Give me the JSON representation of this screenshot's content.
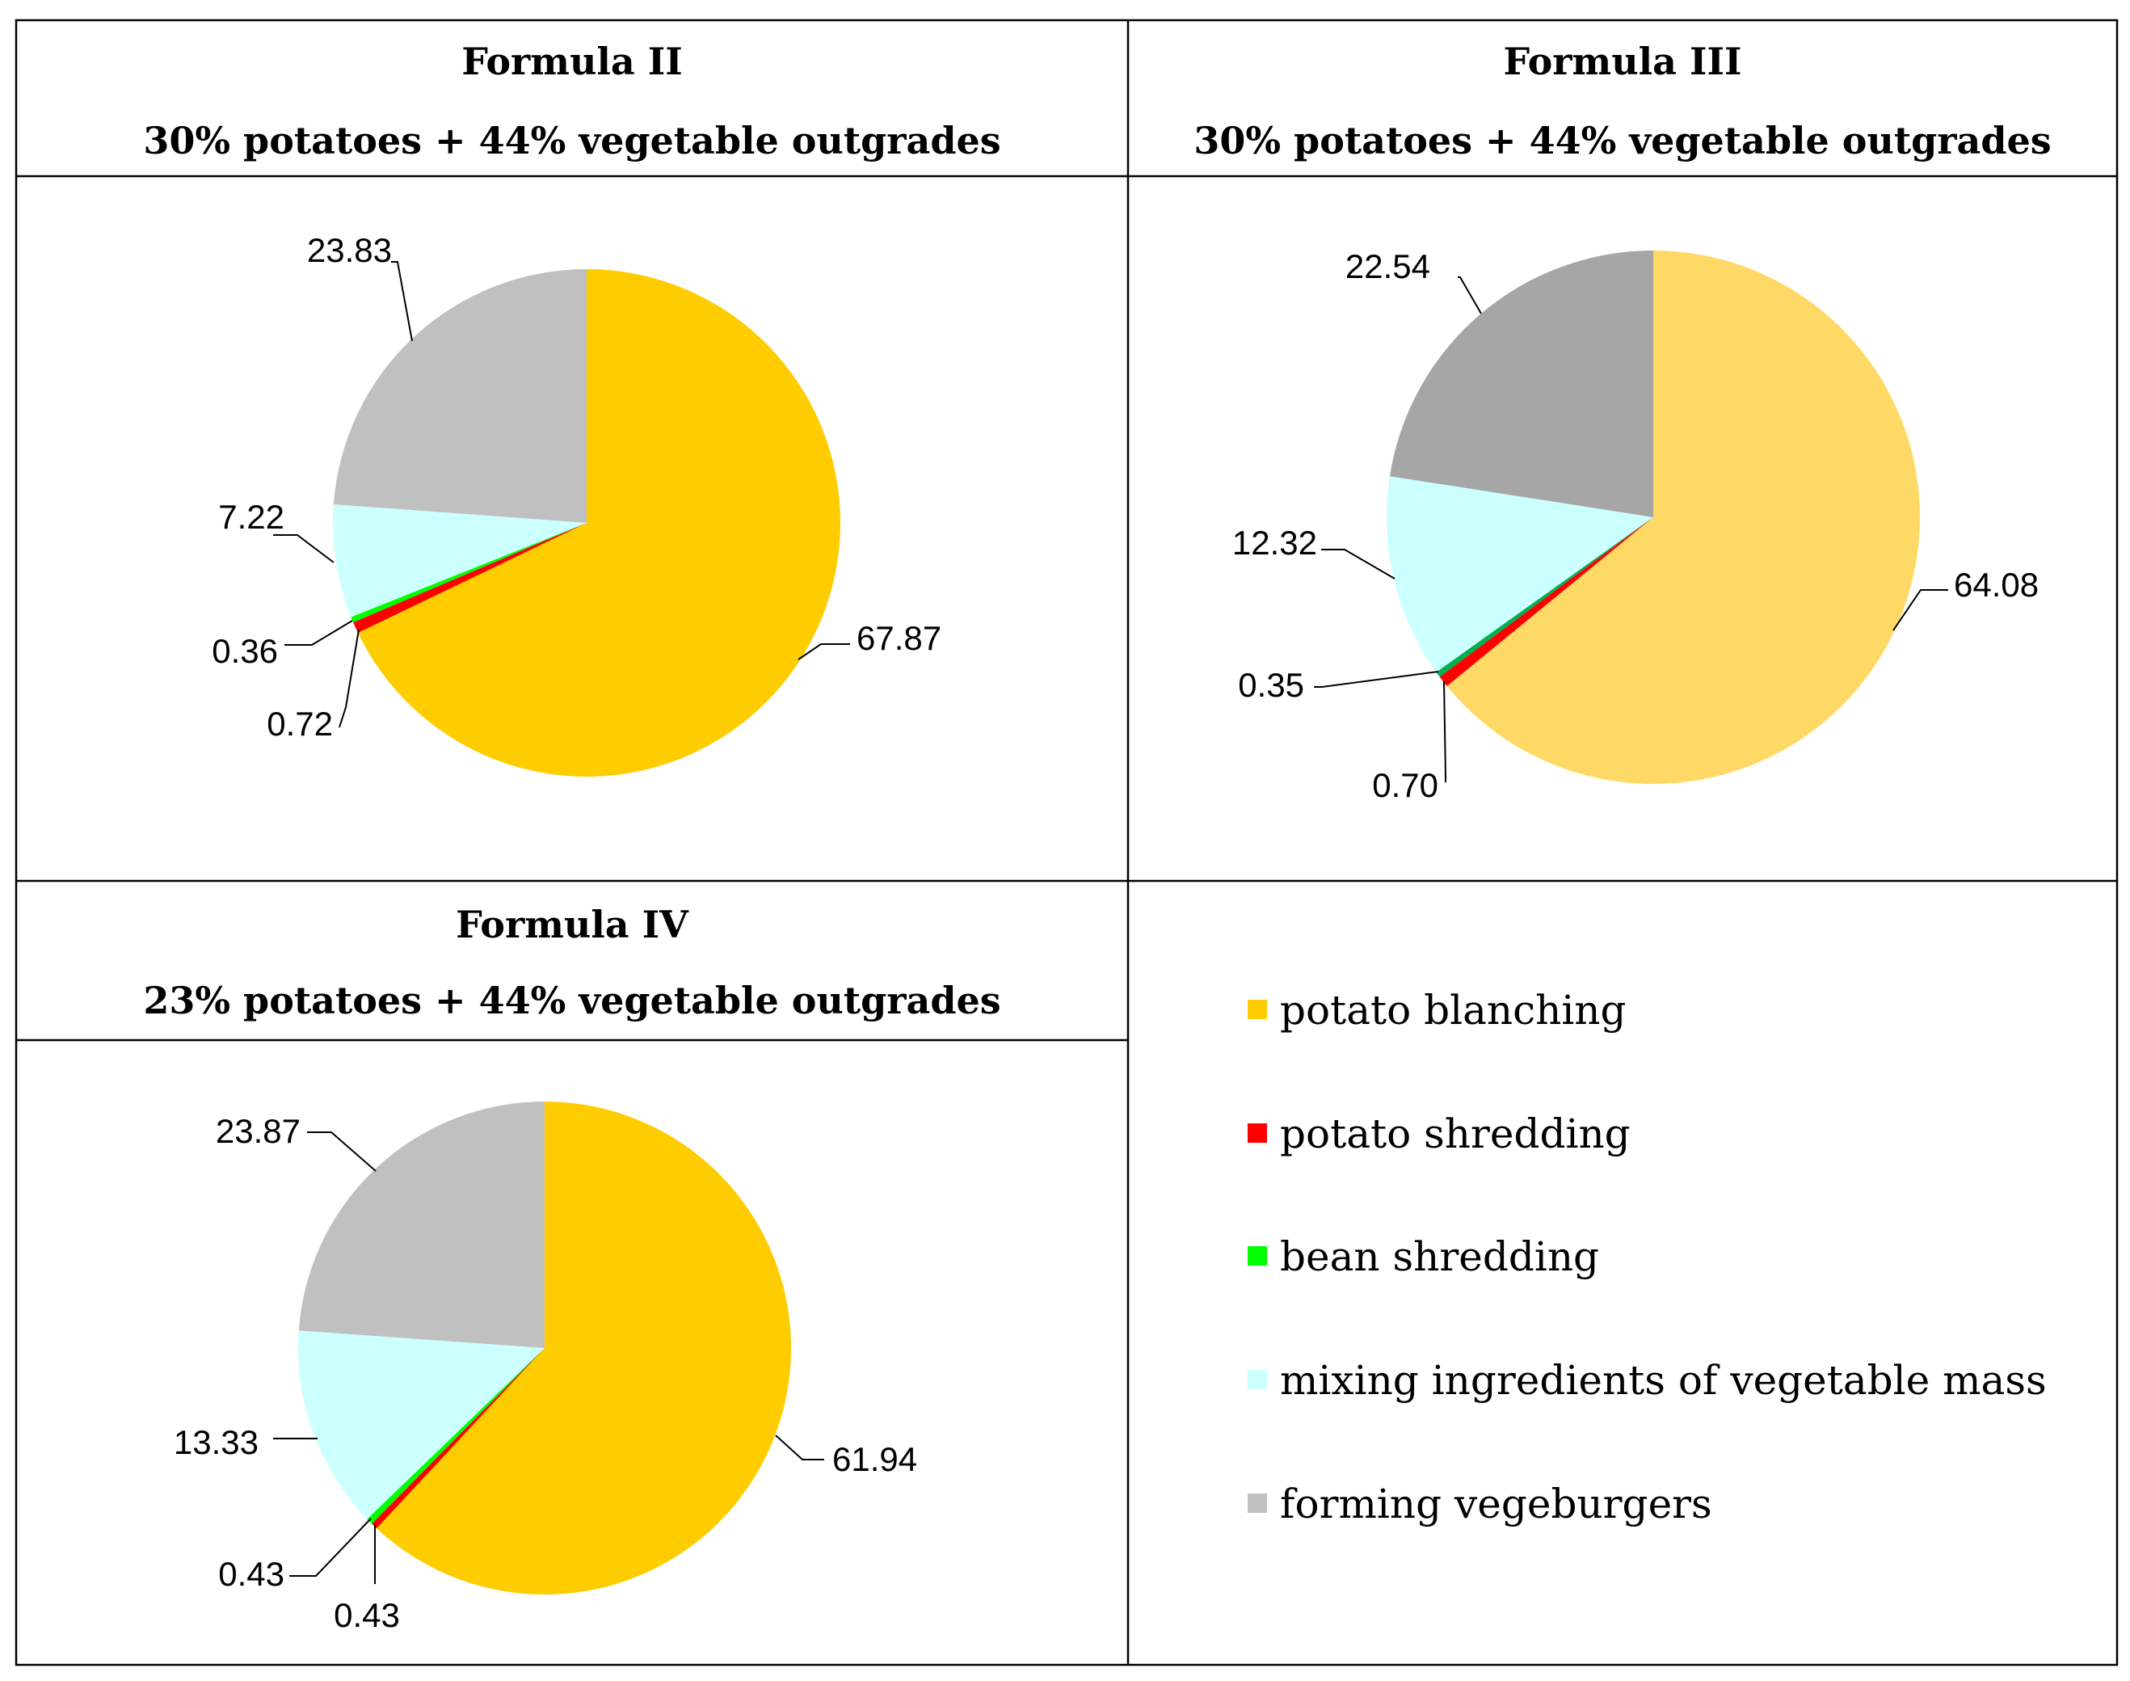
{
  "colors": {
    "potato_blanching": "#FFCC00",
    "potato_blanching_light": "#FFD966",
    "potato_shredding": "#FF0000",
    "bean_shredding": "#00FF00",
    "bean_shredding_alt": "#00B050",
    "mixing": "#CCFFFF",
    "forming": "#C0C0C0",
    "forming_dark": "#A6A6A6"
  },
  "legend": {
    "items": [
      {
        "label": "potato blanching",
        "color": "#FFCC00"
      },
      {
        "label": "potato shredding",
        "color": "#FF0000"
      },
      {
        "label": "bean shredding",
        "color": "#00FF00"
      },
      {
        "label": "mixing ingredients of vegetable mass",
        "color": "#CCFFFF"
      },
      {
        "label": "forming vegeburgers",
        "color": "#C0C0C0"
      }
    ]
  },
  "chart_data": [
    {
      "type": "pie",
      "title": "Formula II",
      "subtitle": "30% potatoes + 44% vegetable outgrades",
      "slices": [
        {
          "name": "potato blanching",
          "value": 67.87,
          "label": "67.87",
          "color": "#FFCC00"
        },
        {
          "name": "potato shredding",
          "value": 0.72,
          "label": "0.72",
          "color": "#FF0000"
        },
        {
          "name": "bean shredding",
          "value": 0.36,
          "label": "0.36",
          "color": "#00FF00"
        },
        {
          "name": "mixing ingredients of vegetable mass",
          "value": 7.22,
          "label": "7.22",
          "color": "#CCFFFF"
        },
        {
          "name": "forming vegeburgers",
          "value": 23.83,
          "label": "23.83",
          "color": "#C0C0C0"
        }
      ]
    },
    {
      "type": "pie",
      "title": "Formula III",
      "subtitle": "30% potatoes + 44% vegetable outgrades",
      "slices": [
        {
          "name": "potato blanching",
          "value": 64.08,
          "label": "64.08",
          "color": "#FFD966"
        },
        {
          "name": "potato shredding",
          "value": 0.7,
          "label": "0.70",
          "color": "#FF0000"
        },
        {
          "name": "bean shredding",
          "value": 0.35,
          "label": "0.35",
          "color": "#00B050"
        },
        {
          "name": "mixing ingredients of vegetable mass",
          "value": 12.32,
          "label": "12.32",
          "color": "#CCFFFF"
        },
        {
          "name": "forming vegeburgers",
          "value": 22.54,
          "label": "22.54",
          "color": "#A6A6A6"
        }
      ]
    },
    {
      "type": "pie",
      "title": "Formula IV",
      "subtitle": "23% potatoes + 44% vegetable outgrades",
      "slices": [
        {
          "name": "potato blanching",
          "value": 61.94,
          "label": "61.94",
          "color": "#FFCC00"
        },
        {
          "name": "potato shredding",
          "value": 0.43,
          "label": "0.43",
          "color": "#FF0000"
        },
        {
          "name": "bean shredding",
          "value": 0.43,
          "label": "0.43",
          "color": "#00FF00"
        },
        {
          "name": "mixing ingredients of vegetable mass",
          "value": 13.33,
          "label": "13.33",
          "color": "#CCFFFF"
        },
        {
          "name": "forming vegeburgers",
          "value": 23.87,
          "label": "23.87",
          "color": "#C0C0C0"
        }
      ]
    }
  ]
}
